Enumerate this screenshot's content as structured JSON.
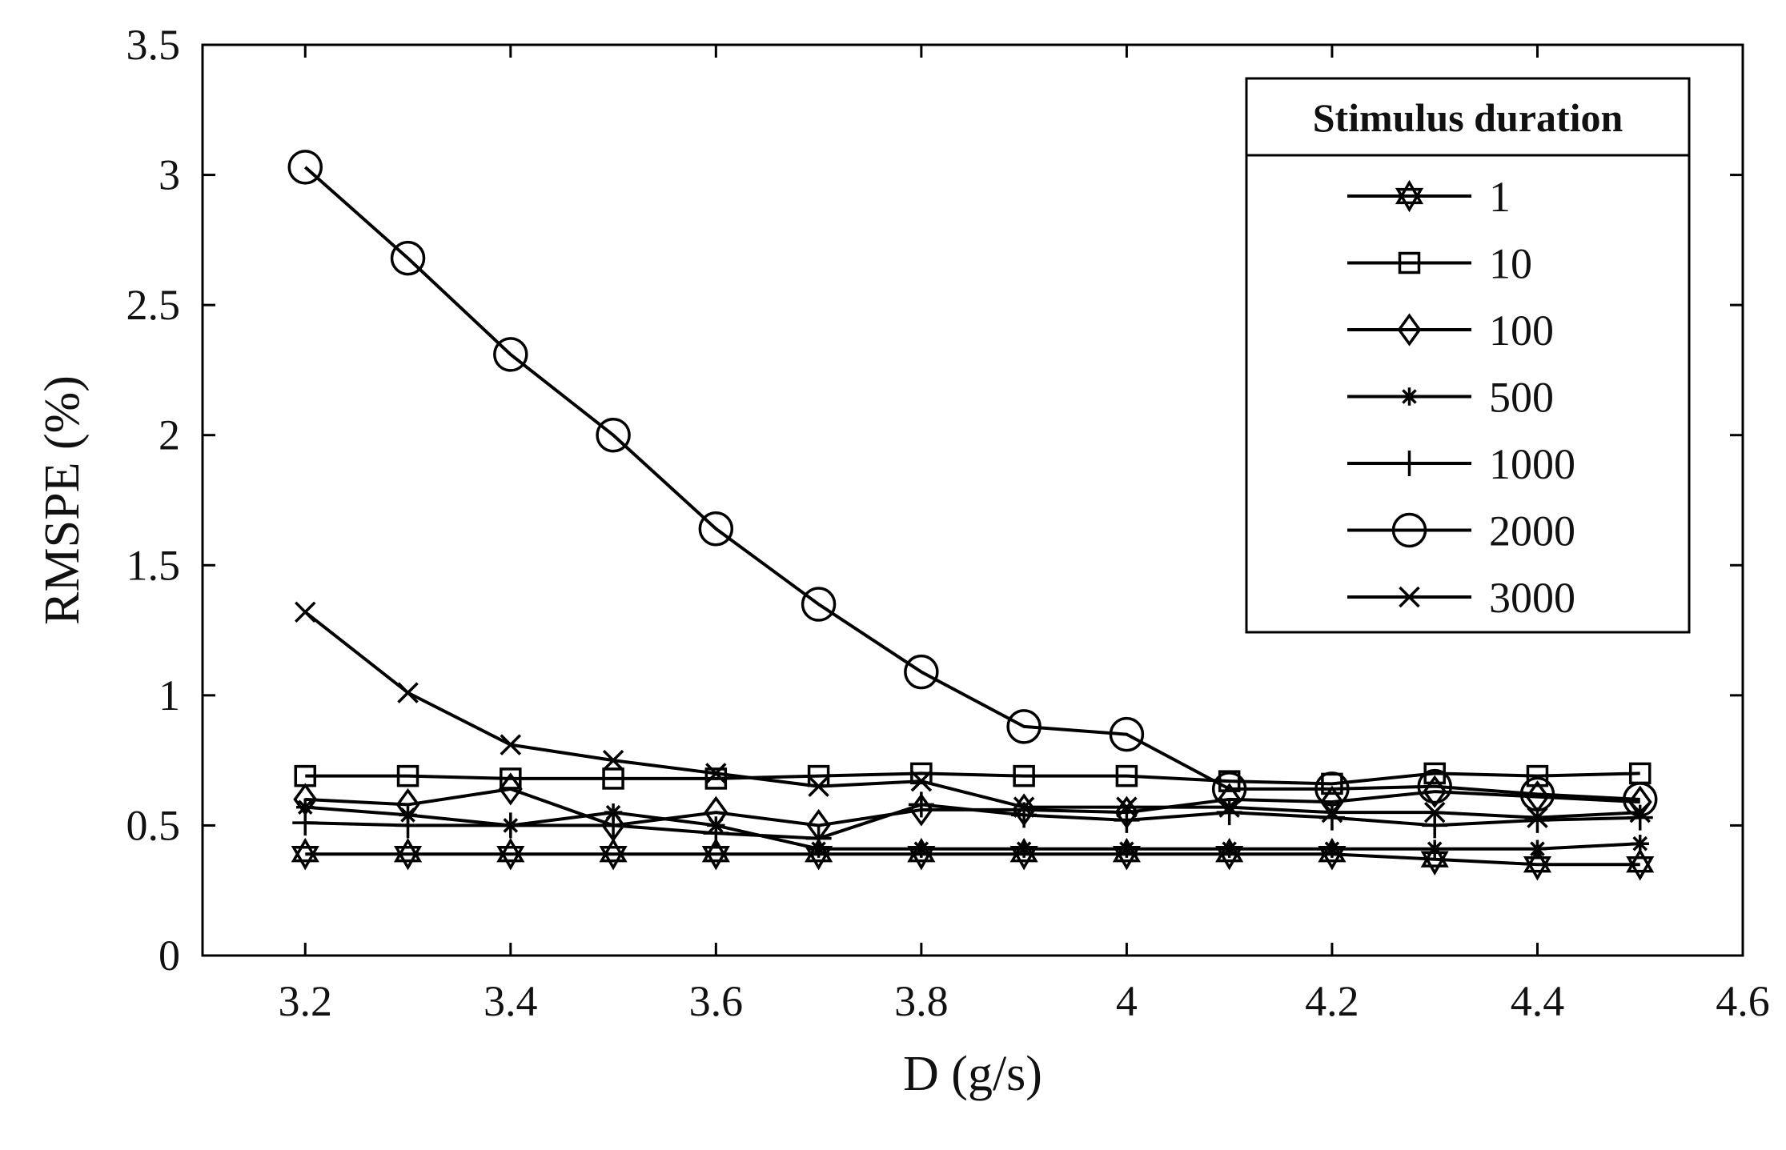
{
  "chart_data": {
    "type": "line",
    "title": "",
    "xlabel": "D (g/s)",
    "ylabel": "RMSPE (%)",
    "xlim": [
      3.1,
      4.6
    ],
    "ylim": [
      0,
      3.5
    ],
    "xticks": [
      3.2,
      3.4,
      3.6,
      3.8,
      4.0,
      4.2,
      4.4,
      4.6
    ],
    "xtick_labels": [
      "3.2",
      "3.4",
      "3.6",
      "3.8",
      "4",
      "4.2",
      "4.4",
      "4.6"
    ],
    "yticks": [
      0,
      0.5,
      1,
      1.5,
      2,
      2.5,
      3,
      3.5
    ],
    "ytick_labels": [
      "0",
      "0.5",
      "1",
      "1.5",
      "2",
      "2.5",
      "3",
      "3.5"
    ],
    "grid": false,
    "legend_title": "Stimulus duration",
    "legend_position": "top-right",
    "x": [
      3.2,
      3.3,
      3.4,
      3.5,
      3.6,
      3.7,
      3.8,
      3.9,
      4.0,
      4.1,
      4.2,
      4.3,
      4.4,
      4.5
    ],
    "series": [
      {
        "name": "1",
        "marker": "hexagram",
        "values": [
          0.39,
          0.39,
          0.39,
          0.39,
          0.39,
          0.39,
          0.39,
          0.39,
          0.39,
          0.39,
          0.39,
          0.37,
          0.35,
          0.35
        ]
      },
      {
        "name": "10",
        "marker": "square",
        "values": [
          0.69,
          0.69,
          0.68,
          0.68,
          0.68,
          0.69,
          0.7,
          0.69,
          0.69,
          0.67,
          0.66,
          0.7,
          0.69,
          0.7
        ]
      },
      {
        "name": "100",
        "marker": "diamond",
        "values": [
          0.6,
          0.58,
          0.64,
          0.5,
          0.55,
          0.5,
          0.56,
          0.56,
          0.55,
          0.6,
          0.59,
          0.63,
          0.61,
          0.59
        ]
      },
      {
        "name": "500",
        "marker": "asterisk",
        "values": [
          0.57,
          0.54,
          0.5,
          0.55,
          0.5,
          0.41,
          0.41,
          0.41,
          0.41,
          0.41,
          0.41,
          0.41,
          0.41,
          0.43
        ]
      },
      {
        "name": "1000",
        "marker": "plus",
        "values": [
          0.51,
          0.5,
          0.5,
          0.5,
          0.47,
          0.45,
          0.58,
          0.54,
          0.52,
          0.55,
          0.53,
          0.5,
          0.52,
          0.53
        ]
      },
      {
        "name": "2000",
        "marker": "circle",
        "values": [
          3.03,
          2.68,
          2.31,
          2.0,
          1.64,
          1.35,
          1.09,
          0.88,
          0.85,
          0.64,
          0.64,
          0.65,
          0.62,
          0.6
        ]
      },
      {
        "name": "3000",
        "marker": "x",
        "values": [
          1.32,
          1.01,
          0.81,
          0.75,
          0.7,
          0.65,
          0.67,
          0.57,
          0.57,
          0.57,
          0.55,
          0.55,
          0.53,
          0.55
        ]
      }
    ]
  }
}
